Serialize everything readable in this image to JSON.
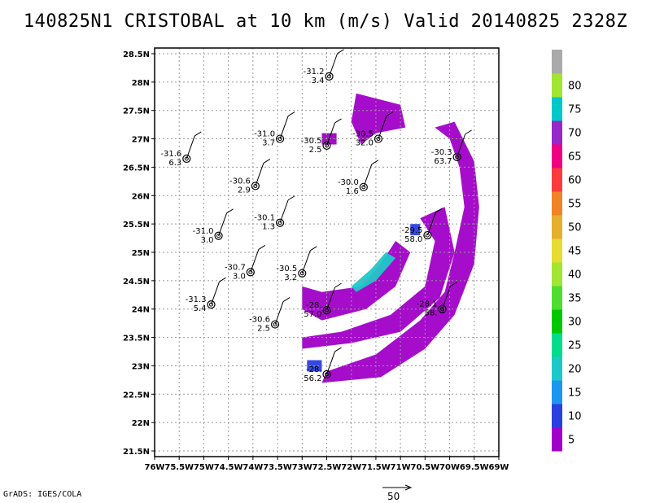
{
  "title": "140825N1 CRISTOBAL at 10 km (m/s) Valid 20140825 2328Z",
  "credit": "GrADS: IGES/COLA",
  "reference_vector_label": "50",
  "chart_data": {
    "type": "map",
    "xlim": [
      -76,
      -69
    ],
    "ylim": [
      21.4,
      28.6
    ],
    "x_tick_labels": [
      "76W",
      "75.5W",
      "75W",
      "74.5W",
      "74W",
      "73.5W",
      "73W",
      "72.5W",
      "72W",
      "71.5W",
      "71W",
      "70.5W",
      "70W",
      "69.5W",
      "69W"
    ],
    "y_tick_labels": [
      "21.5N",
      "22N",
      "22.5N",
      "23N",
      "23.5N",
      "24N",
      "24.5N",
      "25N",
      "25.5N",
      "26N",
      "26.5N",
      "27N",
      "27.5N",
      "28N",
      "28.5N"
    ],
    "grid": true,
    "colorbar": {
      "labels": [
        "5",
        "10",
        "15",
        "20",
        "25",
        "30",
        "35",
        "40",
        "45",
        "50",
        "55",
        "60",
        "65",
        "70",
        "75",
        "80"
      ],
      "colors": [
        "#a000c8",
        "#2a3fe0",
        "#1e96f0",
        "#1ec8c8",
        "#00dc8c",
        "#00c800",
        "#50dc32",
        "#a0e632",
        "#e6dc32",
        "#e6af2d",
        "#f08228",
        "#fa3c3c",
        "#f00082",
        "#9628c8",
        "#00c8c8",
        "#a0e632",
        "#aaaaaa"
      ]
    },
    "stations": [
      {
        "lon": -72.45,
        "lat": 28.1,
        "temp": "-31.2",
        "wind": "3.4"
      },
      {
        "lon": -73.45,
        "lat": 27.0,
        "temp": "-31.0",
        "wind": "3.7"
      },
      {
        "lon": -72.5,
        "lat": 26.88,
        "temp": "-30.5",
        "wind": "2.5"
      },
      {
        "lon": -71.45,
        "lat": 27.0,
        "temp": "-30.5",
        "wind": "32.0"
      },
      {
        "lon": -75.35,
        "lat": 26.65,
        "temp": "-31.6",
        "wind": "6.3"
      },
      {
        "lon": -69.85,
        "lat": 26.68,
        "temp": "-30.3",
        "wind": "63.7"
      },
      {
        "lon": -73.95,
        "lat": 26.17,
        "temp": "-30.6",
        "wind": "2.9"
      },
      {
        "lon": -71.75,
        "lat": 26.15,
        "temp": "-30.0",
        "wind": "1.6"
      },
      {
        "lon": -73.45,
        "lat": 25.52,
        "temp": "-30.1",
        "wind": "1.3"
      },
      {
        "lon": -74.7,
        "lat": 25.29,
        "temp": "-31.0",
        "wind": "3.0"
      },
      {
        "lon": -70.45,
        "lat": 25.3,
        "temp": "-29.5",
        "wind": "58.0"
      },
      {
        "lon": -74.05,
        "lat": 24.65,
        "temp": "-30.7",
        "wind": "3.0"
      },
      {
        "lon": -73.0,
        "lat": 24.63,
        "temp": "-30.5",
        "wind": "3.2"
      },
      {
        "lon": -74.85,
        "lat": 24.08,
        "temp": "-31.3",
        "wind": "5.4"
      },
      {
        "lon": -72.5,
        "lat": 23.98,
        "temp": "-28.",
        "wind": "57.0"
      },
      {
        "lon": -70.15,
        "lat": 24.0,
        "temp": "-28.1",
        "wind": "58."
      },
      {
        "lon": -73.55,
        "lat": 23.73,
        "temp": "-30.6",
        "wind": "2.5"
      },
      {
        "lon": -72.5,
        "lat": 22.85,
        "temp": "-28.",
        "wind": "56.2"
      }
    ]
  }
}
